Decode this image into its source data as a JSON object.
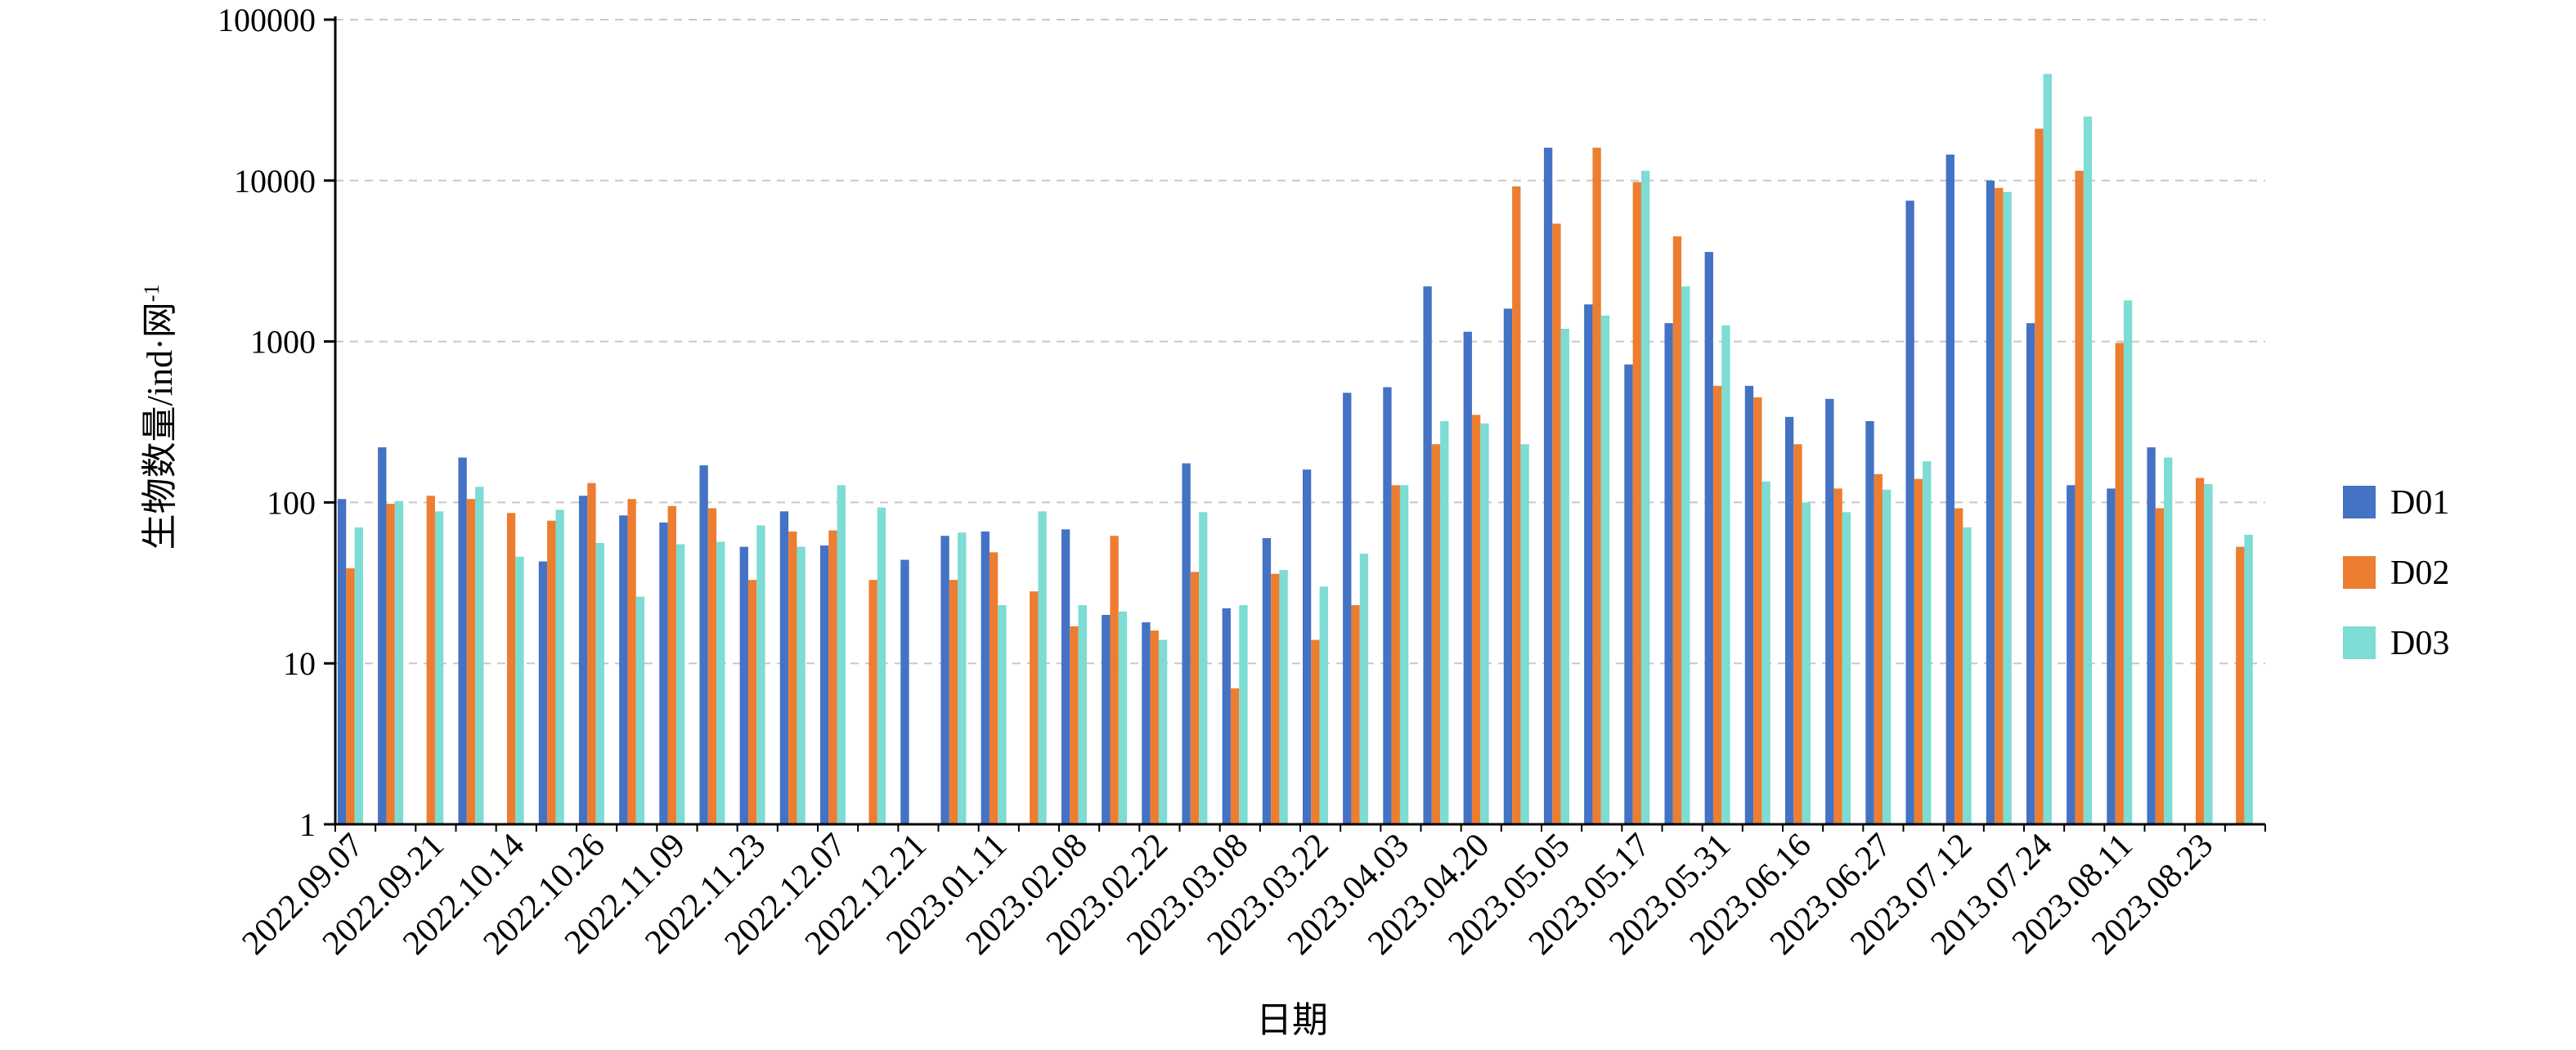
{
  "chart_data": {
    "type": "bar",
    "xlabel": "日期",
    "ylabel": "生物数量/ind·网",
    "ylabel_sup": "-1",
    "yscale": "log",
    "ylim": [
      1,
      100000
    ],
    "y_ticks": [
      "1",
      "10",
      "100",
      "1000",
      "10000",
      "100000"
    ],
    "grid": "horizontal dashed",
    "legend_position": "right",
    "x_tick_labels": [
      "2022.09.07",
      "2022.09.21",
      "2022.10.14",
      "2022.10.26",
      "2022.11.09",
      "2022.11.23",
      "2022.12.07",
      "2022.12.21",
      "2023.01.11",
      "2023.02.08",
      "2023.02.22",
      "2023.03.08",
      "2023.03.22",
      "2023.04.03",
      "2023.04.20",
      "2023.05.05",
      "2023.05.17",
      "2023.05.31",
      "2023.06.16",
      "2023.06.27",
      "2023.07.12",
      "2013.07.24",
      "2023.08.11",
      "2023.08.23"
    ],
    "groups_count": 48,
    "series": [
      {
        "name": "D01",
        "color": "#4472C4",
        "values": [
          105,
          220,
          null,
          190,
          null,
          43,
          110,
          83,
          75,
          170,
          53,
          88,
          54,
          null,
          44,
          62,
          66,
          null,
          68,
          20,
          18,
          175,
          22,
          60,
          160,
          480,
          520,
          2200,
          1150,
          1600,
          16000,
          1700,
          720,
          1300,
          3600,
          530,
          340,
          440,
          320,
          7500,
          14500,
          10000,
          1300,
          128,
          122,
          220,
          null,
          null
        ]
      },
      {
        "name": "D02",
        "color": "#ED7D31",
        "values": [
          39,
          98,
          110,
          105,
          86,
          77,
          132,
          105,
          95,
          92,
          33,
          66,
          67,
          33,
          null,
          33,
          49,
          28,
          17,
          62,
          16,
          37,
          7,
          36,
          14,
          23,
          128,
          230,
          350,
          9200,
          5400,
          16000,
          9800,
          4500,
          530,
          450,
          230,
          122,
          150,
          140,
          92,
          9000,
          21000,
          11500,
          980,
          92,
          142,
          53
        ]
      },
      {
        "name": "D03",
        "color": "#7DDCD3",
        "values": [
          70,
          102,
          88,
          125,
          46,
          90,
          56,
          26,
          55,
          57,
          72,
          53,
          128,
          93,
          null,
          65,
          23,
          88,
          23,
          21,
          14,
          87,
          23,
          38,
          30,
          48,
          128,
          320,
          310,
          230,
          1200,
          1450,
          11500,
          2200,
          1260,
          135,
          100,
          87,
          120,
          180,
          70,
          8500,
          46000,
          25000,
          1800,
          190,
          130,
          63
        ]
      }
    ]
  }
}
